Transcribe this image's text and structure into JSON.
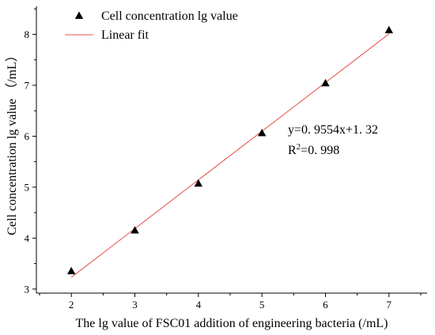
{
  "chart_data": {
    "type": "scatter",
    "xlabel": "The lg value of FSC01 addition of engineering bacteria (/mL)",
    "ylabel": "Cell concentration lg value （/mL）",
    "xlim": [
      1.45,
      7.6
    ],
    "ylim": [
      2.92,
      8.55
    ],
    "x_ticks": [
      "2",
      "3",
      "4",
      "5",
      "6",
      "7"
    ],
    "y_ticks": [
      "3",
      "4",
      "5",
      "6",
      "7",
      "8"
    ],
    "legend_position": "top-left",
    "series": [
      {
        "name": "Cell concentration lg value",
        "kind": "scatter",
        "marker": "triangle",
        "color": "#000000",
        "x": [
          2,
          3,
          4,
          5,
          6,
          7
        ],
        "y": [
          3.35,
          4.15,
          5.07,
          6.06,
          7.04,
          8.08
        ]
      },
      {
        "name": "Linear fit",
        "kind": "line",
        "color": "#e8504a",
        "x": [
          2,
          7
        ],
        "y": [
          3.231,
          8.008
        ]
      }
    ],
    "annotations": {
      "equation": "y=0. 9554x+1. 32",
      "r2_prefix": "R",
      "r2_sup": "2",
      "r2_value": "=0. 998"
    }
  }
}
